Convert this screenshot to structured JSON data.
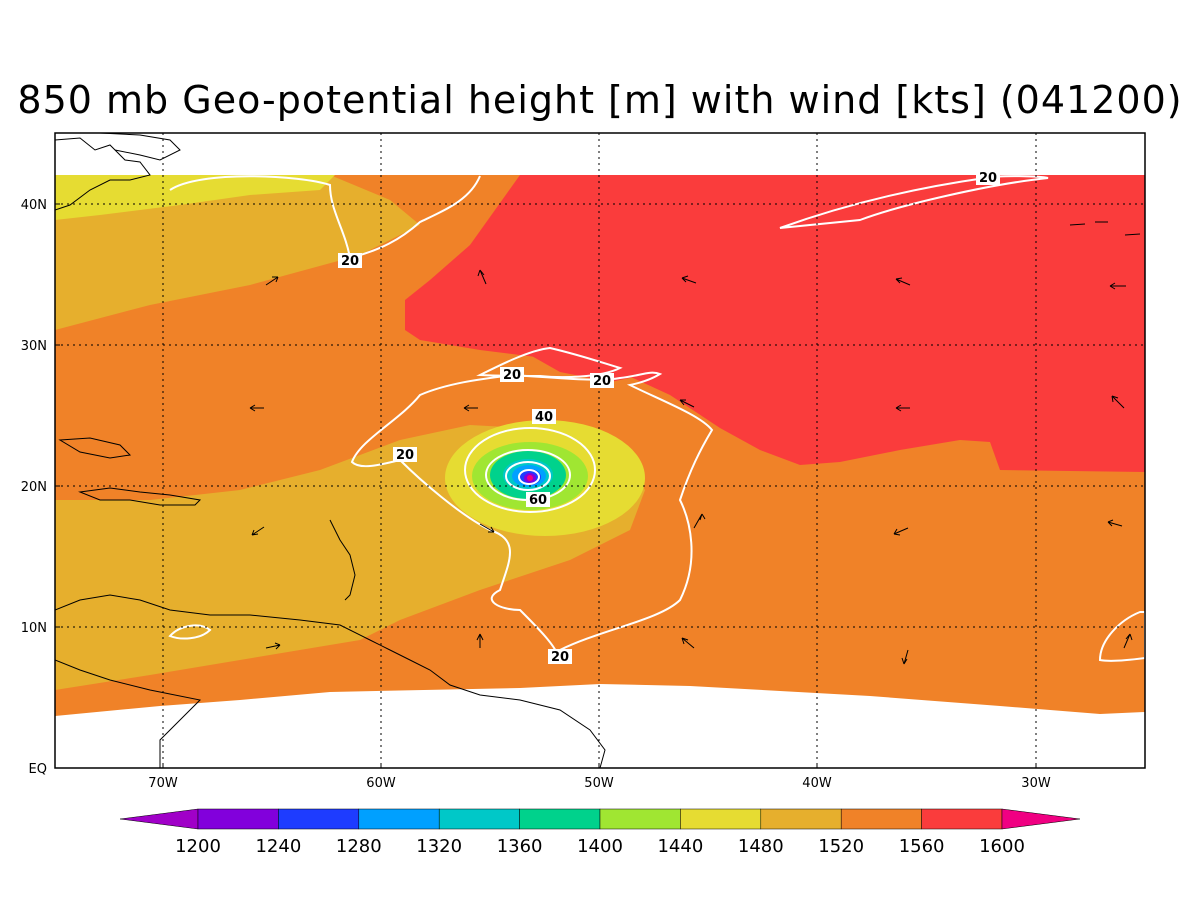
{
  "title": "850 mb Geo-potential height [m] with wind [kts] (041200)",
  "y_axis_labels": [
    "40N",
    "30N",
    "20N",
    "10N",
    "EQ"
  ],
  "x_axis_labels": [
    "70W",
    "60W",
    "50W",
    "40W",
    "30W"
  ],
  "contour_labels": [
    "20",
    "20",
    "20",
    "20",
    "40",
    "20",
    "60",
    "20"
  ],
  "colorbar": {
    "levels": [
      "1200",
      "1240",
      "1280",
      "1320",
      "1360",
      "1400",
      "1440",
      "1480",
      "1520",
      "1560",
      "1600"
    ],
    "colors": [
      "#a000c8",
      "#8200dc",
      "#1e3cff",
      "#00a0ff",
      "#00c8c8",
      "#00d28c",
      "#a0e632",
      "#e6dc32",
      "#e6af2d",
      "#f08228",
      "#fa3c3c",
      "#f00082"
    ]
  },
  "colors": {
    "field_low": "#e6dc32",
    "field_mid": "#e6af2d",
    "field_high": "#f08228",
    "field_top": "#fa3c3c",
    "contour": "#ffffff",
    "coast": "#000000"
  }
}
